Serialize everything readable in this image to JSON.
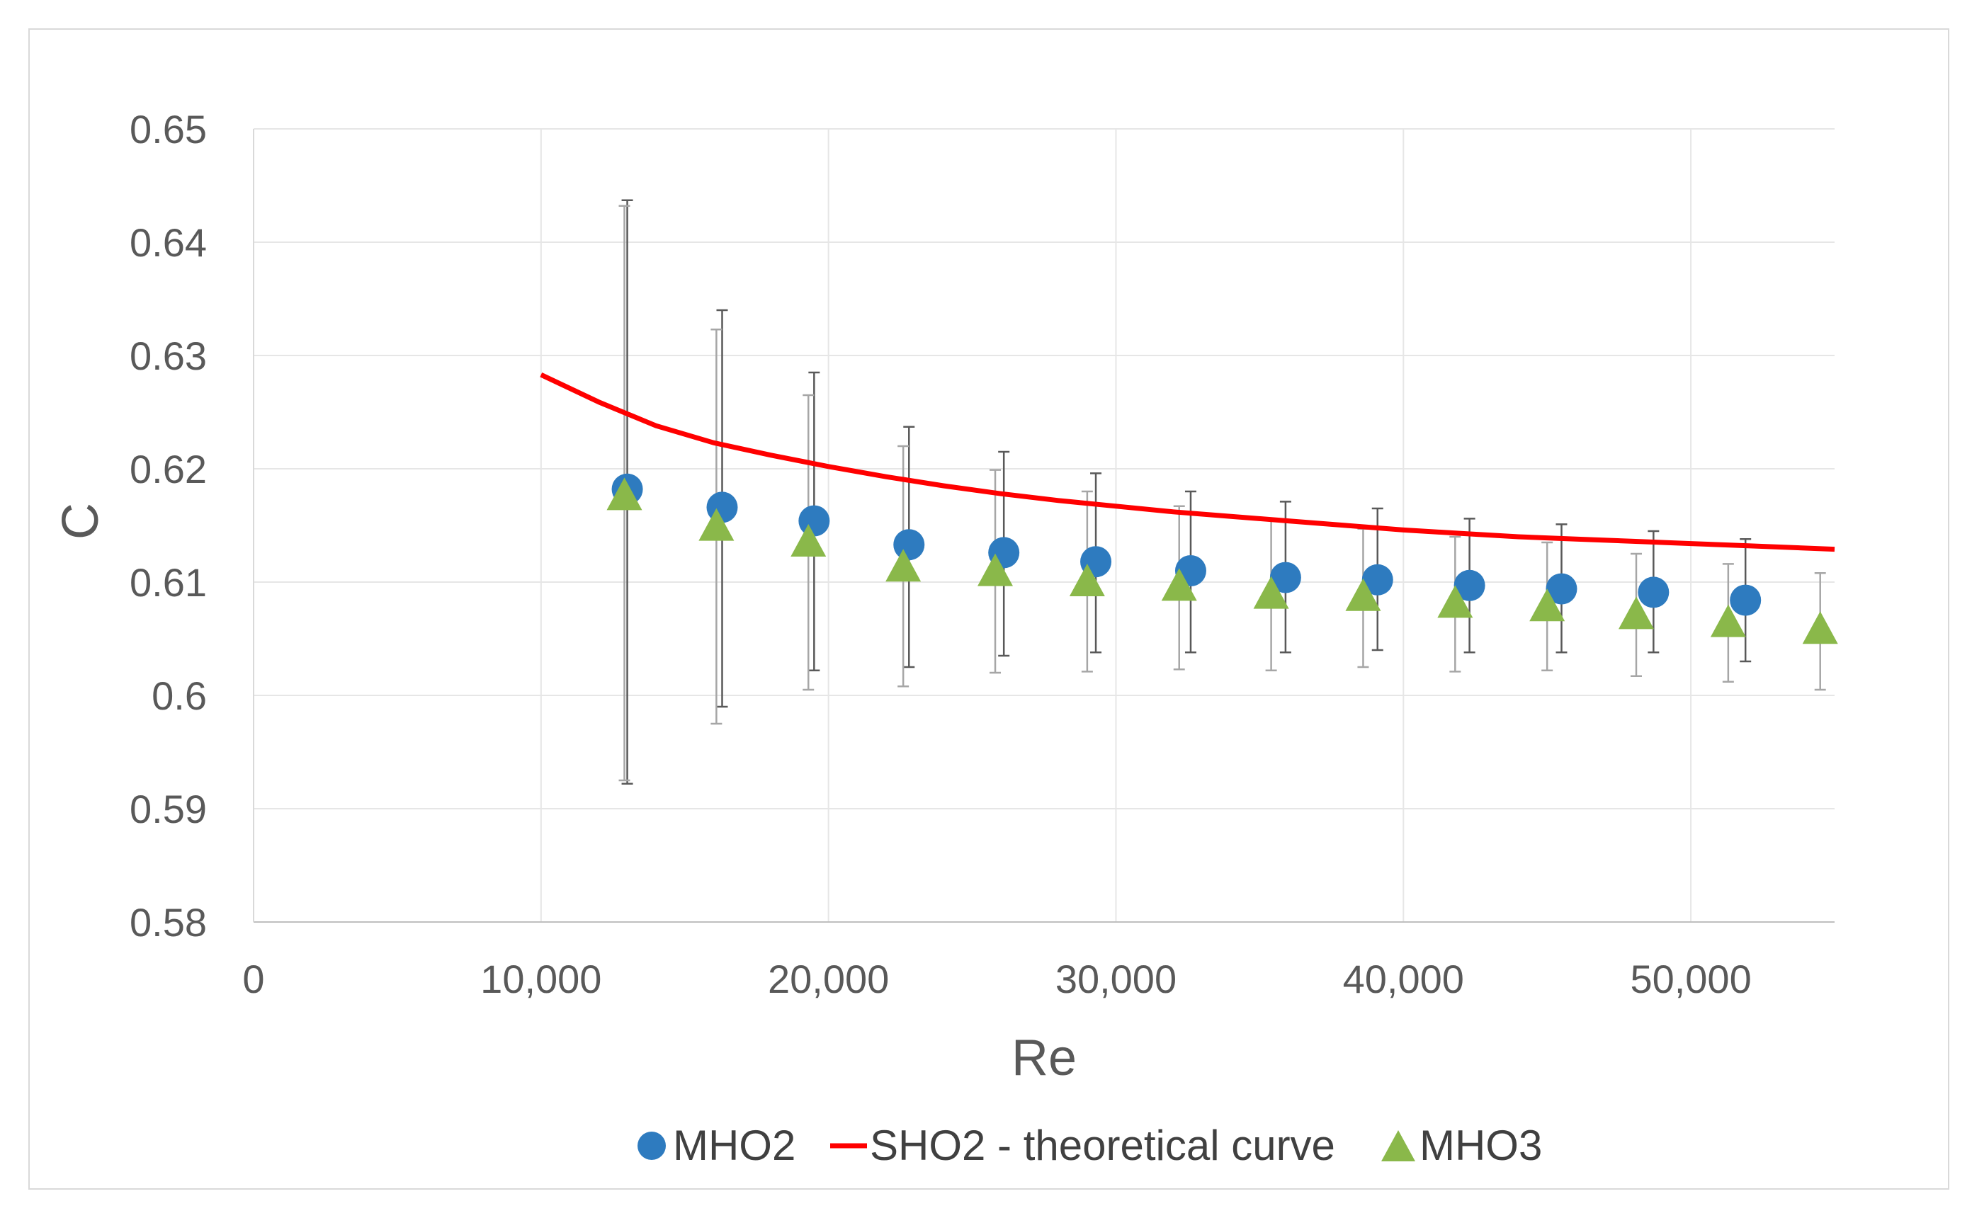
{
  "chart_data": {
    "type": "scatter",
    "title": "",
    "xlabel": "Re",
    "ylabel": "C",
    "xlim": [
      0,
      55000
    ],
    "ylim": [
      0.58,
      0.65
    ],
    "grid": true,
    "legend_position": "bottom",
    "x_ticks": [
      0,
      10000,
      20000,
      30000,
      40000,
      50000
    ],
    "x_tick_labels": [
      "0",
      "10,000",
      "20,000",
      "30,000",
      "40,000",
      "50,000"
    ],
    "y_ticks": [
      0.58,
      0.59,
      0.6,
      0.61,
      0.62,
      0.63,
      0.64,
      0.65
    ],
    "y_tick_labels": [
      "0.58",
      "0.59",
      "0.6",
      "0.61",
      "0.62",
      "0.63",
      "0.64",
      "0.65"
    ],
    "series": [
      {
        "name": "MHO2",
        "kind": "scatter",
        "marker": "circle",
        "color": "#2e7bbf",
        "points": [
          {
            "x": 13000,
            "y": 0.6182,
            "lo": 0.5922,
            "hi": 0.6437
          },
          {
            "x": 16300,
            "y": 0.6166,
            "lo": 0.599,
            "hi": 0.634
          },
          {
            "x": 19500,
            "y": 0.6154,
            "lo": 0.6022,
            "hi": 0.6285
          },
          {
            "x": 22800,
            "y": 0.6133,
            "lo": 0.6025,
            "hi": 0.6237
          },
          {
            "x": 26100,
            "y": 0.6126,
            "lo": 0.6035,
            "hi": 0.6215
          },
          {
            "x": 29300,
            "y": 0.6118,
            "lo": 0.6038,
            "hi": 0.6196
          },
          {
            "x": 32600,
            "y": 0.611,
            "lo": 0.6038,
            "hi": 0.618
          },
          {
            "x": 35900,
            "y": 0.6104,
            "lo": 0.6038,
            "hi": 0.6171
          },
          {
            "x": 39100,
            "y": 0.6102,
            "lo": 0.604,
            "hi": 0.6165
          },
          {
            "x": 42300,
            "y": 0.6097,
            "lo": 0.6038,
            "hi": 0.6156
          },
          {
            "x": 45500,
            "y": 0.6094,
            "lo": 0.6038,
            "hi": 0.6151
          },
          {
            "x": 48700,
            "y": 0.6091,
            "lo": 0.6038,
            "hi": 0.6145
          },
          {
            "x": 51900,
            "y": 0.6084,
            "lo": 0.603,
            "hi": 0.6138
          }
        ]
      },
      {
        "name": "SHO2 - theoretical curve",
        "kind": "line",
        "color": "#ff0000",
        "x": [
          10000,
          12000,
          14000,
          16000,
          18000,
          20000,
          22000,
          24000,
          26000,
          28000,
          30000,
          32000,
          34000,
          36000,
          38000,
          40000,
          42000,
          44000,
          46000,
          48000,
          50000,
          52000,
          54000,
          55000
        ],
        "y": [
          0.6283,
          0.6259,
          0.6238,
          0.6223,
          0.6212,
          0.6202,
          0.6193,
          0.6185,
          0.6178,
          0.6172,
          0.6167,
          0.6162,
          0.6158,
          0.6154,
          0.615,
          0.6146,
          0.6143,
          0.614,
          0.6138,
          0.6136,
          0.6134,
          0.6132,
          0.613,
          0.6129
        ]
      },
      {
        "name": "MHO3",
        "kind": "scatter",
        "marker": "triangle",
        "color": "#8ab84a",
        "points": [
          {
            "x": 12900,
            "y": 0.6176,
            "lo": 0.5925,
            "hi": 0.6432
          },
          {
            "x": 16100,
            "y": 0.6149,
            "lo": 0.5975,
            "hi": 0.6323
          },
          {
            "x": 19300,
            "y": 0.6135,
            "lo": 0.6005,
            "hi": 0.6265
          },
          {
            "x": 22600,
            "y": 0.6113,
            "lo": 0.6008,
            "hi": 0.622
          },
          {
            "x": 25800,
            "y": 0.6109,
            "lo": 0.602,
            "hi": 0.6199
          },
          {
            "x": 29000,
            "y": 0.61,
            "lo": 0.6021,
            "hi": 0.618
          },
          {
            "x": 32200,
            "y": 0.6096,
            "lo": 0.6023,
            "hi": 0.6167
          },
          {
            "x": 35400,
            "y": 0.6089,
            "lo": 0.6022,
            "hi": 0.6155
          },
          {
            "x": 38600,
            "y": 0.6087,
            "lo": 0.6025,
            "hi": 0.6147
          },
          {
            "x": 41800,
            "y": 0.6081,
            "lo": 0.6021,
            "hi": 0.614
          },
          {
            "x": 45000,
            "y": 0.6078,
            "lo": 0.6022,
            "hi": 0.6135
          },
          {
            "x": 48100,
            "y": 0.6071,
            "lo": 0.6017,
            "hi": 0.6125
          },
          {
            "x": 51300,
            "y": 0.6064,
            "lo": 0.6012,
            "hi": 0.6116
          },
          {
            "x": 54500,
            "y": 0.6058,
            "lo": 0.6005,
            "hi": 0.6108
          }
        ]
      }
    ]
  }
}
